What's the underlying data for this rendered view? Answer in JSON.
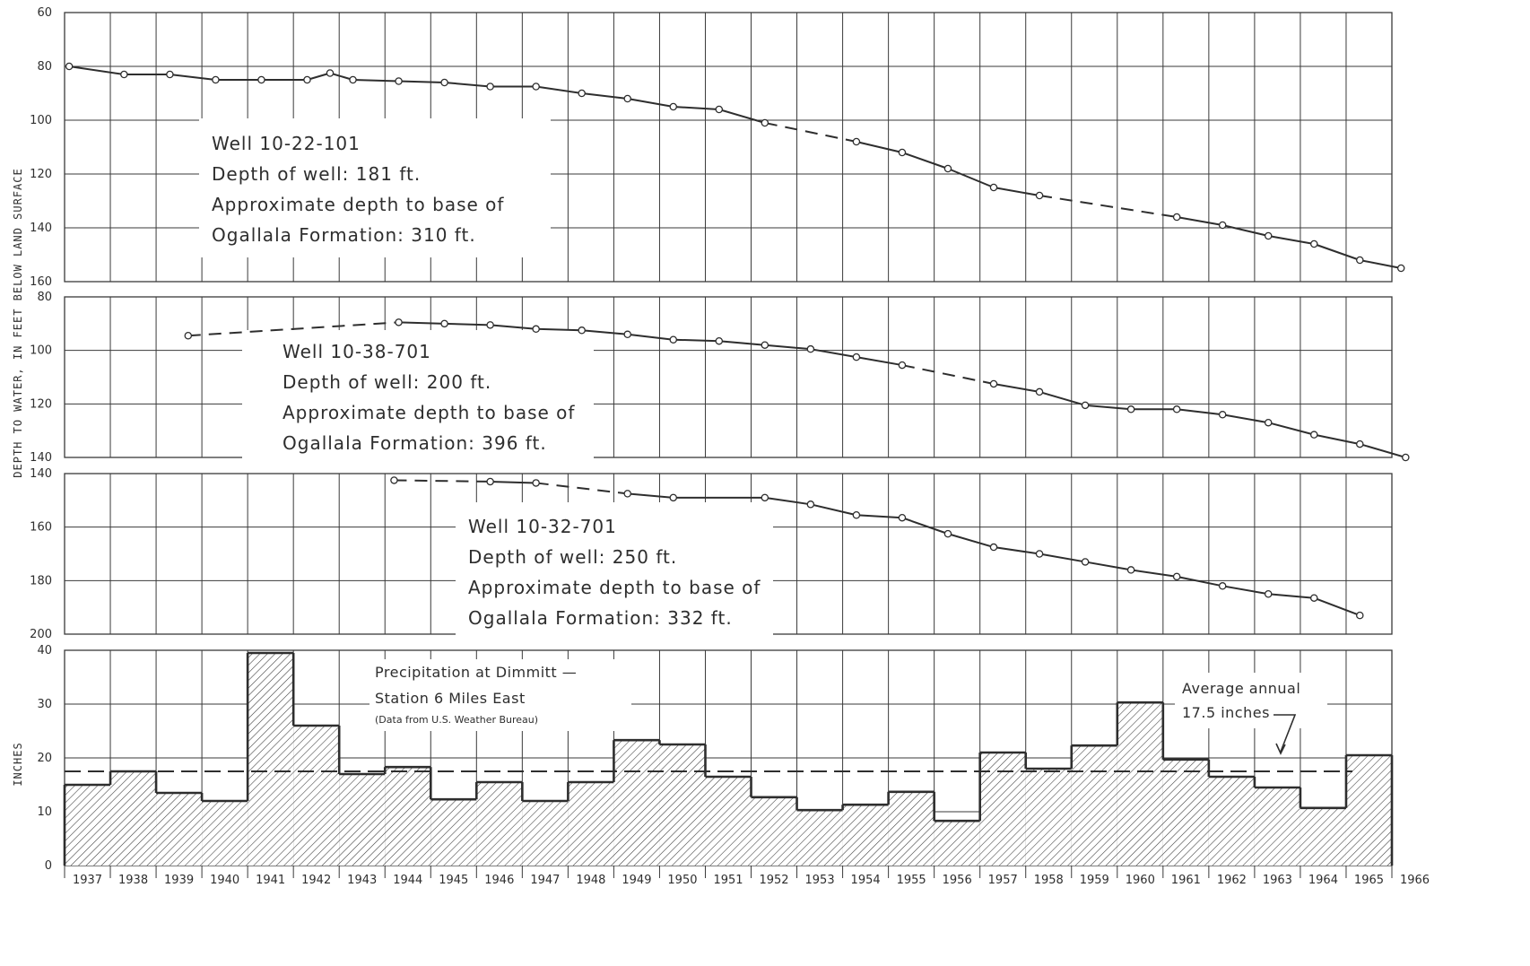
{
  "figure": {
    "y_axis_label": "DEPTH TO WATER, IN FEET BELOW LAND SURFACE",
    "precip_axis_label": "INCHES",
    "years": [
      "1937",
      "1938",
      "1939",
      "1940",
      "1941",
      "1942",
      "1943",
      "1944",
      "1945",
      "1946",
      "1947",
      "1948",
      "1949",
      "1950",
      "1951",
      "1952",
      "1953",
      "1954",
      "1955",
      "1956",
      "1957",
      "1958",
      "1959",
      "1960",
      "1961",
      "1962",
      "1963",
      "1964",
      "1965",
      "1966"
    ]
  },
  "colors": {
    "ink": "#2e2e2e",
    "grid": "#3a3a3a",
    "paper": "#ffffff"
  },
  "chart_data": [
    {
      "type": "line",
      "title": "",
      "annotation": {
        "lines": [
          "Well 10-22-101",
          "Depth of well: 181 ft.",
          "Approximate depth to base of",
          "Ogallala Formation: 310 ft."
        ]
      },
      "ylabel": "DEPTH TO WATER, IN FEET BELOW LAND SURFACE",
      "ylim": [
        60,
        160
      ],
      "y_inverted": true,
      "yticks": [
        "60",
        "80",
        "100",
        "120",
        "140",
        "160"
      ],
      "xlim": [
        1937,
        1966
      ],
      "grid": true,
      "x": [
        1937.1,
        1938.3,
        1939.3,
        1940.3,
        1941.3,
        1942.3,
        1942.8,
        1943.3,
        1944.3,
        1945.3,
        1946.3,
        1947.3,
        1948.3,
        1949.3,
        1950.3,
        1951.3,
        1952.3,
        1954.3,
        1955.3,
        1956.3,
        1957.3,
        1958.3,
        1961.3,
        1962.3,
        1963.3,
        1964.3,
        1965.3,
        1966.2
      ],
      "y": [
        80,
        83,
        83,
        85,
        85,
        85,
        82.5,
        85,
        85.5,
        86,
        87.5,
        87.5,
        90,
        92,
        95,
        96,
        101,
        108,
        112,
        118,
        125,
        128,
        136,
        139,
        143,
        146,
        152,
        155
      ],
      "dashed_segments_from_index": [
        16,
        21
      ]
    },
    {
      "type": "line",
      "title": "",
      "annotation": {
        "lines": [
          "Well 10-38-701",
          "Depth of well: 200 ft.",
          "Approximate depth to base of",
          "Ogallala Formation: 396 ft."
        ]
      },
      "ylim": [
        80,
        140
      ],
      "y_inverted": true,
      "yticks": [
        "80",
        "100",
        "120",
        "140"
      ],
      "xlim": [
        1937,
        1966
      ],
      "grid": true,
      "x": [
        1939.7,
        1944.3,
        1945.3,
        1946.3,
        1947.3,
        1948.3,
        1949.3,
        1950.3,
        1951.3,
        1952.3,
        1953.3,
        1954.3,
        1955.3,
        1957.3,
        1958.3,
        1959.3,
        1960.3,
        1961.3,
        1962.3,
        1963.3,
        1964.3,
        1965.3,
        1966.3
      ],
      "y": [
        94.5,
        89.5,
        90,
        90.5,
        92,
        92.5,
        94,
        96,
        96.5,
        98,
        99.5,
        102.5,
        105.5,
        112.5,
        115.5,
        120.5,
        122,
        122,
        124,
        127,
        131.5,
        135,
        140
      ],
      "dashed_segments_from_index": [
        0,
        12
      ]
    },
    {
      "type": "line",
      "title": "",
      "annotation": {
        "lines": [
          "Well 10-32-701",
          "Depth of well: 250 ft.",
          "Approximate depth to base of",
          "Ogallala Formation: 332 ft."
        ]
      },
      "ylim": [
        140,
        200
      ],
      "y_inverted": true,
      "yticks": [
        "140",
        "160",
        "180",
        "200"
      ],
      "xlim": [
        1937,
        1966
      ],
      "grid": true,
      "x": [
        1944.2,
        1946.3,
        1947.3,
        1949.3,
        1950.3,
        1952.3,
        1953.3,
        1954.3,
        1955.3,
        1956.3,
        1957.3,
        1958.3,
        1959.3,
        1960.3,
        1961.3,
        1962.3,
        1963.3,
        1964.3,
        1965.3
      ],
      "y": [
        142.5,
        143,
        143.5,
        147.5,
        149,
        149,
        151.5,
        155.5,
        156.5,
        162.5,
        167.5,
        170,
        173,
        176,
        178.5,
        182,
        185,
        186.5,
        193
      ],
      "dashed_segments_from_index": [
        0,
        2
      ]
    },
    {
      "type": "bar",
      "title": "",
      "annotation": {
        "lines": [
          "Precipitation at Dimmitt —",
          "Station 6 Miles East"
        ],
        "source": "(Data from U.S. Weather Bureau)",
        "average_lines": [
          "Average annual",
          "17.5 inches"
        ]
      },
      "ylabel": "INCHES",
      "ylim": [
        0,
        40
      ],
      "yticks": [
        "0",
        "10",
        "20",
        "30",
        "40"
      ],
      "categories": [
        "1937",
        "1938",
        "1939",
        "1940",
        "1941",
        "1942",
        "1943",
        "1944",
        "1945",
        "1946",
        "1947",
        "1948",
        "1949",
        "1950",
        "1951",
        "1952",
        "1953",
        "1954",
        "1955",
        "1956",
        "1957",
        "1958",
        "1959",
        "1960",
        "1961",
        "1962",
        "1963",
        "1964",
        "1965"
      ],
      "values": [
        15,
        17.5,
        13.5,
        12,
        39.5,
        26,
        17,
        18.3,
        12.3,
        15.5,
        12,
        15.5,
        23.3,
        22.5,
        16.5,
        12.7,
        10.3,
        11.3,
        13.7,
        8.3,
        21,
        18,
        22.3,
        30.3,
        19.7,
        16.5,
        14.5,
        10.7,
        20.5
      ],
      "average": 17.5,
      "grid": true
    }
  ]
}
